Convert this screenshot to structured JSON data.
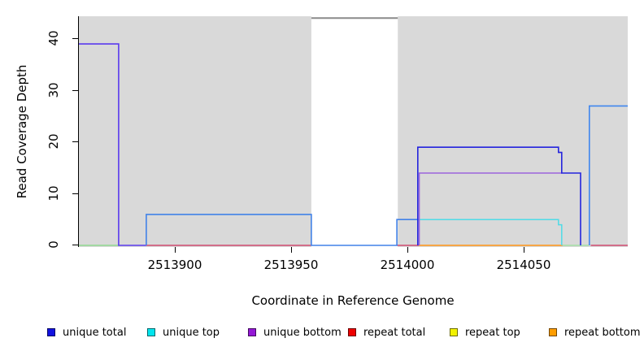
{
  "y_axis": {
    "label": "Read Coverage Depth",
    "ticks": [
      "0",
      "10",
      "20",
      "30",
      "40"
    ]
  },
  "x_axis": {
    "label": "Coordinate in Reference Genome",
    "ticks": [
      "2513900",
      "2513950",
      "2514000",
      "2514050"
    ]
  },
  "legend": [
    {
      "label": "unique total",
      "color": "#1111e0"
    },
    {
      "label": "unique top",
      "color": "#00e5ee"
    },
    {
      "label": "unique bottom",
      "color": "#9418d6"
    },
    {
      "label": "repeat total",
      "color": "#ee0000"
    },
    {
      "label": "repeat top",
      "color": "#f2f200"
    },
    {
      "label": "repeat bottom",
      "color": "#ff9d00"
    }
  ],
  "chart_data": {
    "type": "line",
    "title": "",
    "xlabel": "Coordinate in Reference Genome",
    "ylabel": "Read Coverage Depth",
    "xlim": [
      2513858.7,
      2514094.8
    ],
    "ylim": [
      0,
      44.4
    ],
    "x_ticks": [
      2513900,
      2513950,
      2514000,
      2514050
    ],
    "y_ticks": [
      0,
      10,
      20,
      30,
      40
    ],
    "plot_background": "#d9d9d9",
    "gap_region": {
      "x1": 2513958.7,
      "x2": 2513995.9,
      "fill": "#ffffff",
      "top_value": 44,
      "top_line_color": "#8a8a8a"
    },
    "legend_position": "bottom",
    "grid": false,
    "lines": [
      {
        "name": "baseline-green-left",
        "color": "#8fd88f",
        "width": 1.4,
        "points": [
          [
            2513858.7,
            0
          ],
          [
            2513875.8,
            0
          ]
        ]
      },
      {
        "name": "baseline-crimson-mid",
        "color": "#cf4a70",
        "width": 1.4,
        "points": [
          [
            2513887.7,
            0
          ],
          [
            2513958.7,
            0
          ]
        ]
      },
      {
        "name": "baseline-crimson-gap-right",
        "color": "#cf4a70",
        "width": 1.4,
        "points": [
          [
            2513995.5,
            0
          ],
          [
            2514004.9,
            0
          ]
        ]
      },
      {
        "name": "baseline-crimson-far-right",
        "color": "#cf4a70",
        "width": 1.4,
        "points": [
          [
            2514078.9,
            0
          ],
          [
            2514094.8,
            0
          ]
        ]
      },
      {
        "name": "baseline-orange",
        "color": "#ff9617",
        "width": 1.5,
        "points": [
          [
            2514004.9,
            0
          ],
          [
            2514066.8,
            0
          ]
        ]
      },
      {
        "name": "baseline-lightgreen",
        "color": "#a4dfa6",
        "width": 1.4,
        "points": [
          [
            2514066.8,
            0
          ],
          [
            2514078.0,
            0
          ]
        ]
      },
      {
        "name": "clipped-coverage-top-44",
        "color": "#8a8a8a",
        "width": 2,
        "points": [
          [
            2513958.7,
            44
          ],
          [
            2513995.9,
            44
          ]
        ]
      },
      {
        "name": "unique-total-bottom-39",
        "color": "#5a3bee",
        "width": 1.6,
        "points": [
          [
            2513858.7,
            39
          ],
          [
            2513875.8,
            39
          ],
          [
            2513875.8,
            0
          ],
          [
            2513887.7,
            0
          ]
        ]
      },
      {
        "name": "unique-total-top-6-5",
        "color": "#4182e8",
        "width": 1.6,
        "points": [
          [
            2513887.7,
            0
          ],
          [
            2513887.7,
            6
          ],
          [
            2513958.7,
            6
          ],
          [
            2513958.7,
            0
          ],
          [
            2513995.5,
            0
          ],
          [
            2513995.5,
            5
          ],
          [
            2514004.5,
            5
          ]
        ]
      },
      {
        "name": "unique-top-cyan-5-4",
        "color": "#4fdbe6",
        "width": 1.5,
        "points": [
          [
            2514004.5,
            5
          ],
          [
            2514065.0,
            5
          ],
          [
            2514065.0,
            4
          ],
          [
            2514066.4,
            4
          ],
          [
            2514066.4,
            0
          ]
        ]
      },
      {
        "name": "unique-bottom-purple-14",
        "color": "#9c64dc",
        "width": 1.5,
        "points": [
          [
            2514005.1,
            0
          ],
          [
            2514005.1,
            14
          ],
          [
            2514066.4,
            14
          ]
        ]
      },
      {
        "name": "unique-total-blue-19-18-14",
        "color": "#2424dd",
        "width": 1.6,
        "points": [
          [
            2514004.5,
            0
          ],
          [
            2514004.5,
            19
          ],
          [
            2514065.0,
            19
          ],
          [
            2514065.0,
            18
          ],
          [
            2514066.4,
            18
          ],
          [
            2514066.4,
            14
          ],
          [
            2514074.5,
            14
          ],
          [
            2514074.5,
            0
          ]
        ]
      },
      {
        "name": "unique-total-top-27",
        "color": "#3f86ee",
        "width": 1.6,
        "points": [
          [
            2514078.3,
            0
          ],
          [
            2514078.3,
            27
          ],
          [
            2514094.8,
            27
          ]
        ]
      }
    ]
  }
}
